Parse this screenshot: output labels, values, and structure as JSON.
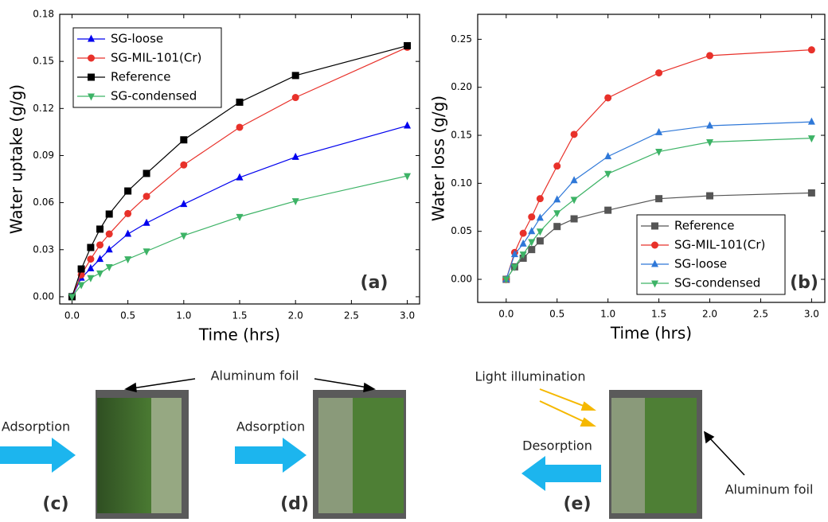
{
  "chart_data": [
    {
      "type": "line",
      "annotation": "(a)",
      "x_label": "Time (hrs)",
      "y_label": "Water uptake (g/g)",
      "x": [
        0,
        0.083,
        0.167,
        0.25,
        0.333,
        0.5,
        0.667,
        1.0,
        1.5,
        2.0,
        3.0
      ],
      "series": [
        {
          "name": "SG-loose",
          "color": "#0000ee",
          "marker": "triangle-up",
          "values": [
            0,
            0.012,
            0.018,
            0.024,
            0.03,
            0.04,
            0.047,
            0.059,
            0.076,
            0.089,
            0.109
          ]
        },
        {
          "name": "SG-MIL-101(Cr)",
          "color": "#e8312a",
          "marker": "circle",
          "values": [
            0,
            0.014,
            0.024,
            0.033,
            0.04,
            0.053,
            0.064,
            0.084,
            0.108,
            0.127,
            0.159
          ]
        },
        {
          "name": "Reference",
          "color": "#000000",
          "marker": "square",
          "values": [
            0,
            0.0177,
            0.0314,
            0.0431,
            0.0527,
            0.0674,
            0.0786,
            0.1,
            0.124,
            0.141,
            0.16
          ]
        },
        {
          "name": "SG-condensed",
          "color": "#3db366",
          "marker": "triangle-down",
          "values": [
            0,
            0.0076,
            0.012,
            0.015,
            0.019,
            0.024,
            0.029,
            0.039,
            0.051,
            0.061,
            0.077
          ]
        }
      ],
      "xlim": [
        -0.11,
        3.11
      ],
      "ylim": [
        -0.0046,
        0.18
      ],
      "xticks": [
        {
          "value": 0,
          "label": "0.0"
        },
        {
          "value": 0.5,
          "label": "0.5"
        },
        {
          "value": 1,
          "label": "1.0"
        },
        {
          "value": 1.5,
          "label": "1.5"
        },
        {
          "value": 2,
          "label": "2.0"
        },
        {
          "value": 2.5,
          "label": "2.5"
        },
        {
          "value": 3,
          "label": "3.0"
        }
      ],
      "yticks": [
        {
          "value": 0,
          "label": "0.00"
        },
        {
          "value": 0.03,
          "label": "0.03"
        },
        {
          "value": 0.06,
          "label": "0.06"
        },
        {
          "value": 0.09,
          "label": "0.09"
        },
        {
          "value": 0.12,
          "label": "0.12"
        },
        {
          "value": 0.15,
          "label": "0.15"
        },
        {
          "value": 0.18,
          "label": "0.18"
        }
      ],
      "legend": "upper left"
    },
    {
      "type": "line",
      "annotation": "(b)",
      "x_label": "Time (hrs)",
      "y_label": "Water loss (g/g)",
      "x": [
        0,
        0.083,
        0.167,
        0.25,
        0.333,
        0.5,
        0.667,
        1.0,
        1.5,
        2.0,
        3.0
      ],
      "series": [
        {
          "name": "Reference",
          "color": "#555555",
          "marker": "square",
          "values": [
            0,
            0.013,
            0.022,
            0.031,
            0.04,
            0.055,
            0.063,
            0.072,
            0.084,
            0.087,
            0.09
          ]
        },
        {
          "name": "SG-MIL-101(Cr)",
          "color": "#e8312a",
          "marker": "circle",
          "values": [
            0,
            0.028,
            0.048,
            0.065,
            0.084,
            0.118,
            0.151,
            0.189,
            0.215,
            0.233,
            0.239
          ]
        },
        {
          "name": "SG-loose",
          "color": "#2f78d8",
          "marker": "triangle-up",
          "values": [
            0,
            0.026,
            0.037,
            0.05,
            0.064,
            0.083,
            0.103,
            0.128,
            0.153,
            0.16,
            0.164
          ]
        },
        {
          "name": "SG-condensed",
          "color": "#3db366",
          "marker": "triangle-down",
          "values": [
            0,
            0.013,
            0.026,
            0.039,
            0.05,
            0.069,
            0.083,
            0.11,
            0.133,
            0.143,
            0.147
          ]
        }
      ],
      "xlim": [
        -0.28,
        3.13
      ],
      "ylim": [
        -0.024,
        0.276
      ],
      "xticks": [
        {
          "value": 0,
          "label": "0.0"
        },
        {
          "value": 0.5,
          "label": "0.5"
        },
        {
          "value": 1,
          "label": "1.0"
        },
        {
          "value": 1.5,
          "label": "1.5"
        },
        {
          "value": 2,
          "label": "2.0"
        },
        {
          "value": 2.5,
          "label": "2.5"
        },
        {
          "value": 3,
          "label": "3.0"
        }
      ],
      "yticks": [
        {
          "value": 0,
          "label": "0.00"
        },
        {
          "value": 0.05,
          "label": "0.05"
        },
        {
          "value": 0.1,
          "label": "0.10"
        },
        {
          "value": 0.15,
          "label": "0.15"
        },
        {
          "value": 0.2,
          "label": "0.20"
        },
        {
          "value": 0.25,
          "label": "0.25"
        }
      ],
      "legend": "lower right"
    }
  ],
  "diagrams": {
    "foil_label_cd": "Aluminum foil",
    "foil_label_e": "Aluminum foil",
    "light_label": "Light illumination",
    "panels": [
      {
        "label": "(c)",
        "arrow_text": "Adsorption"
      },
      {
        "label": "(d)",
        "arrow_text": "Adsorption"
      },
      {
        "label": "(e)",
        "arrow_text": "Desorption"
      }
    ]
  }
}
